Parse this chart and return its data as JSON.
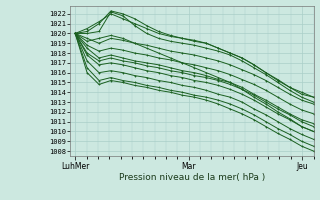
{
  "xlabel": "Pression niveau de la mer( hPa )",
  "bg_color": "#cce8e0",
  "grid_color": "#aacfc8",
  "line_color": "#1a6020",
  "ylim": [
    1007.5,
    1022.8
  ],
  "yticks": [
    1008,
    1009,
    1010,
    1011,
    1012,
    1013,
    1014,
    1015,
    1016,
    1017,
    1018,
    1019,
    1020,
    1021,
    1022
  ],
  "xtick_labels": [
    "LuhMer",
    "Mar",
    "Jeu"
  ],
  "xtick_positions": [
    0.0,
    0.476,
    0.952
  ],
  "series": [
    [
      1020.0,
      1020.0,
      1020.2,
      1022.2,
      1021.8,
      1020.8,
      1020.0,
      1019.5,
      1019.2,
      1019.0,
      1018.8,
      1018.5,
      1018.2,
      1017.8,
      1017.2,
      1016.5,
      1015.8,
      1015.0,
      1014.2,
      1013.5,
      1013.0
    ],
    [
      1020.0,
      1020.2,
      1021.0,
      1022.3,
      1022.0,
      1021.5,
      1020.8,
      1020.2,
      1019.8,
      1019.5,
      1019.2,
      1019.0,
      1018.5,
      1018.0,
      1017.5,
      1016.8,
      1016.0,
      1015.2,
      1014.5,
      1013.8,
      1013.5
    ],
    [
      1020.0,
      1020.5,
      1021.2,
      1022.0,
      1021.5,
      1021.0,
      1020.5,
      1020.0,
      1019.7,
      1019.5,
      1019.3,
      1019.0,
      1018.5,
      1018.0,
      1017.5,
      1016.8,
      1016.0,
      1015.3,
      1014.5,
      1014.0,
      1013.5
    ],
    [
      1020.0,
      1019.5,
      1019.0,
      1019.5,
      1019.3,
      1019.0,
      1018.8,
      1018.5,
      1018.2,
      1018.0,
      1017.8,
      1017.5,
      1017.2,
      1016.8,
      1016.3,
      1015.8,
      1015.2,
      1014.5,
      1013.8,
      1013.2,
      1012.8
    ],
    [
      1020.0,
      1018.8,
      1018.2,
      1018.5,
      1018.3,
      1018.0,
      1017.8,
      1017.5,
      1017.3,
      1017.0,
      1016.8,
      1016.5,
      1016.2,
      1015.8,
      1015.3,
      1014.8,
      1014.2,
      1013.5,
      1012.8,
      1012.2,
      1011.8
    ],
    [
      1020.0,
      1018.5,
      1017.5,
      1017.8,
      1017.5,
      1017.2,
      1017.0,
      1016.8,
      1016.5,
      1016.2,
      1016.0,
      1015.7,
      1015.3,
      1015.0,
      1014.5,
      1013.8,
      1013.2,
      1012.5,
      1011.8,
      1011.2,
      1010.8
    ],
    [
      1020.0,
      1017.8,
      1016.8,
      1017.0,
      1016.8,
      1016.5,
      1016.2,
      1016.0,
      1015.7,
      1015.5,
      1015.2,
      1015.0,
      1014.7,
      1014.3,
      1013.8,
      1013.2,
      1012.5,
      1011.8,
      1011.2,
      1010.5,
      1010.0
    ],
    [
      1020.0,
      1017.2,
      1016.0,
      1016.2,
      1016.0,
      1015.7,
      1015.5,
      1015.2,
      1015.0,
      1014.7,
      1014.5,
      1014.2,
      1013.8,
      1013.5,
      1013.0,
      1012.3,
      1011.7,
      1011.0,
      1010.3,
      1009.7,
      1009.2
    ],
    [
      1020.0,
      1016.5,
      1015.2,
      1015.5,
      1015.2,
      1015.0,
      1014.7,
      1014.5,
      1014.2,
      1014.0,
      1013.7,
      1013.5,
      1013.2,
      1012.8,
      1012.3,
      1011.7,
      1011.0,
      1010.3,
      1009.7,
      1009.0,
      1008.5
    ],
    [
      1020.0,
      1019.2,
      1019.5,
      1019.8,
      1019.5,
      1019.0,
      1018.5,
      1018.0,
      1017.5,
      1017.0,
      1016.5,
      1016.0,
      1015.5,
      1015.0,
      1014.3,
      1013.5,
      1012.8,
      1012.0,
      1011.3,
      1010.5,
      1010.0
    ],
    [
      1020.0,
      1018.0,
      1017.2,
      1017.5,
      1017.2,
      1017.0,
      1016.7,
      1016.5,
      1016.2,
      1016.0,
      1015.7,
      1015.5,
      1015.2,
      1014.8,
      1014.3,
      1013.7,
      1013.0,
      1012.3,
      1011.7,
      1011.0,
      1010.5
    ],
    [
      1020.0,
      1016.0,
      1014.8,
      1015.2,
      1015.0,
      1014.7,
      1014.5,
      1014.2,
      1014.0,
      1013.7,
      1013.5,
      1013.2,
      1012.8,
      1012.3,
      1011.8,
      1011.2,
      1010.5,
      1009.8,
      1009.2,
      1008.5,
      1008.0
    ]
  ]
}
